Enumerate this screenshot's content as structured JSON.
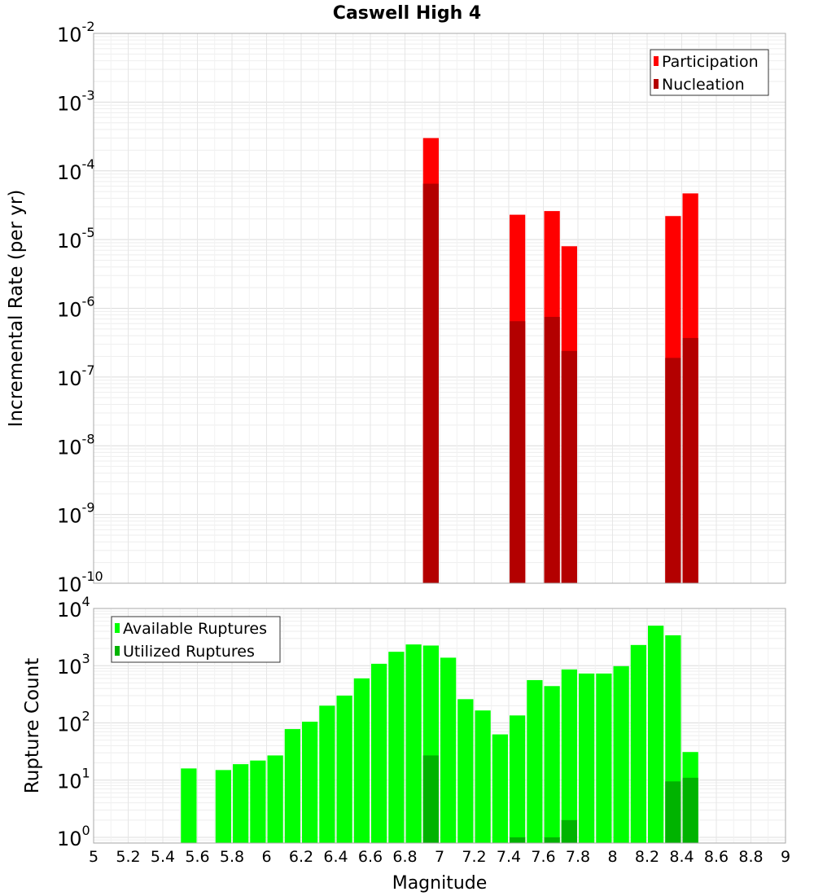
{
  "chart_data": {
    "title": "Caswell High 4",
    "xlabel": "Magnitude",
    "x_ticks": [
      "5",
      "5.2",
      "5.4",
      "5.6",
      "5.8",
      "6",
      "6.2",
      "6.4",
      "6.6",
      "6.8",
      "7",
      "7.2",
      "7.4",
      "7.6",
      "7.8",
      "8",
      "8.2",
      "8.4",
      "8.6",
      "8.8",
      "9"
    ],
    "xlim": [
      5,
      9
    ],
    "bin_width": 0.1,
    "charts": [
      {
        "type": "bar",
        "ylabel": "Incremental Rate (per yr)",
        "yscale": "log",
        "ylim_exp": [
          -10,
          -2
        ],
        "legend": {
          "position": "top-right",
          "entries": [
            {
              "label": "Participation",
              "color": "#ff0000"
            },
            {
              "label": "Nucleation",
              "color": "#b30000"
            }
          ]
        },
        "series": [
          {
            "name": "Participation",
            "color": "#ff0000",
            "points": [
              {
                "x": 6.95,
                "y": 0.0003
              },
              {
                "x": 7.45,
                "y": 2.3e-05
              },
              {
                "x": 7.65,
                "y": 2.6e-05
              },
              {
                "x": 7.75,
                "y": 8e-06
              },
              {
                "x": 8.35,
                "y": 2.2e-05
              },
              {
                "x": 8.45,
                "y": 4.7e-05
              }
            ]
          },
          {
            "name": "Nucleation",
            "color": "#b30000",
            "points": [
              {
                "x": 6.95,
                "y": 6.5e-05
              },
              {
                "x": 7.45,
                "y": 6.5e-07
              },
              {
                "x": 7.65,
                "y": 7.5e-07
              },
              {
                "x": 7.75,
                "y": 2.4e-07
              },
              {
                "x": 8.35,
                "y": 1.9e-07
              },
              {
                "x": 8.45,
                "y": 3.7e-07
              }
            ]
          }
        ]
      },
      {
        "type": "bar",
        "ylabel": "Rupture Count",
        "yscale": "log",
        "ylim_exp": [
          -0.1,
          4
        ],
        "legend": {
          "position": "top-left",
          "entries": [
            {
              "label": "Available Ruptures",
              "color": "#00ff00"
            },
            {
              "label": "Utilized Ruptures",
              "color": "#00b300"
            }
          ]
        },
        "series": [
          {
            "name": "Available Ruptures",
            "color": "#00ff00",
            "points": [
              {
                "x": 5.55,
                "y": 16
              },
              {
                "x": 5.75,
                "y": 15
              },
              {
                "x": 5.85,
                "y": 19
              },
              {
                "x": 5.95,
                "y": 22
              },
              {
                "x": 6.05,
                "y": 27
              },
              {
                "x": 6.15,
                "y": 78
              },
              {
                "x": 6.25,
                "y": 105
              },
              {
                "x": 6.35,
                "y": 200
              },
              {
                "x": 6.45,
                "y": 300
              },
              {
                "x": 6.55,
                "y": 600
              },
              {
                "x": 6.65,
                "y": 1080
              },
              {
                "x": 6.75,
                "y": 1750
              },
              {
                "x": 6.85,
                "y": 2350
              },
              {
                "x": 6.95,
                "y": 2250
              },
              {
                "x": 7.05,
                "y": 1380
              },
              {
                "x": 7.15,
                "y": 260
              },
              {
                "x": 7.25,
                "y": 165
              },
              {
                "x": 7.35,
                "y": 63
              },
              {
                "x": 7.45,
                "y": 135
              },
              {
                "x": 7.55,
                "y": 560
              },
              {
                "x": 7.65,
                "y": 440
              },
              {
                "x": 7.75,
                "y": 860
              },
              {
                "x": 7.85,
                "y": 730
              },
              {
                "x": 7.95,
                "y": 730
              },
              {
                "x": 8.05,
                "y": 980
              },
              {
                "x": 8.15,
                "y": 2300
              },
              {
                "x": 8.25,
                "y": 5000
              },
              {
                "x": 8.35,
                "y": 3400
              },
              {
                "x": 8.45,
                "y": 31
              }
            ]
          },
          {
            "name": "Utilized Ruptures",
            "color": "#00b300",
            "points": [
              {
                "x": 6.95,
                "y": 27
              },
              {
                "x": 7.45,
                "y": 1
              },
              {
                "x": 7.65,
                "y": 1
              },
              {
                "x": 7.75,
                "y": 2
              },
              {
                "x": 8.35,
                "y": 9.5
              },
              {
                "x": 8.45,
                "y": 11
              }
            ]
          }
        ]
      }
    ]
  }
}
